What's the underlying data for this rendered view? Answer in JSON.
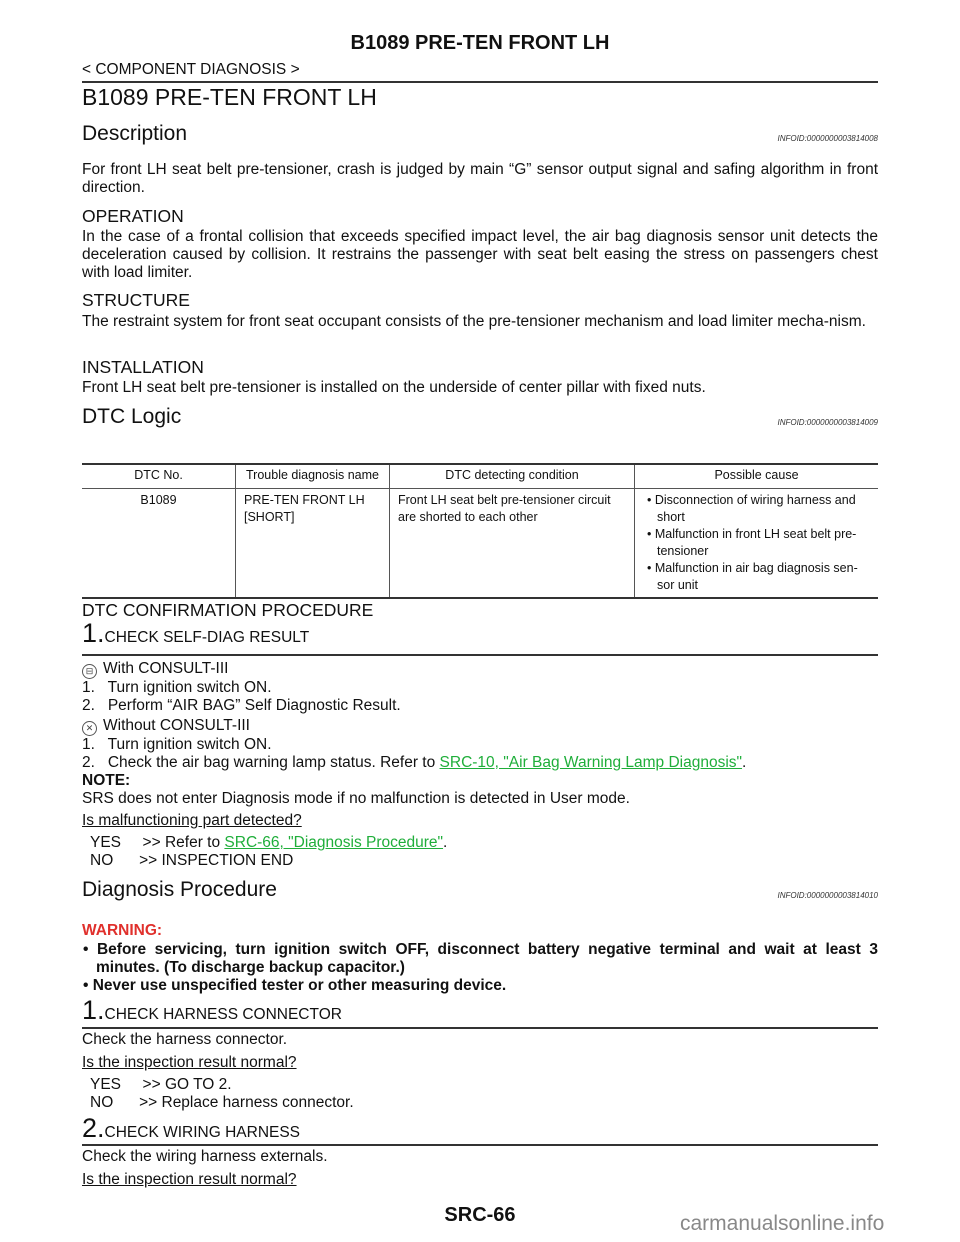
{
  "header": {
    "title": "B1089 PRE-TEN FRONT LH",
    "breadcrumb": "< COMPONENT DIAGNOSIS >"
  },
  "page_title": "B1089 PRE-TEN FRONT LH",
  "description": {
    "heading": "Description",
    "infoid": "INFOID:0000000003814008",
    "text": "For front LH seat belt pre-tensioner, crash is judged by main “G” sensor output signal and safing algorithm in front direction.",
    "operation_heading": "OPERATION",
    "operation_text": "In the case of a frontal collision that exceeds specified impact level, the air bag diagnosis sensor unit detects the deceleration caused by collision. It restrains the passenger with seat belt easing the stress on passengers chest with load limiter.",
    "structure_heading": "STRUCTURE",
    "structure_text": "The restraint system for front seat occupant consists of the pre-tensioner mechanism and load limiter mecha-nism.",
    "installation_heading": "INSTALLATION",
    "installation_text": "Front LH seat belt pre-tensioner is installed on the underside of center pillar with fixed nuts."
  },
  "dtc_logic": {
    "heading": "DTC Logic",
    "infoid": "INFOID:0000000003814009",
    "table": {
      "headers": [
        "DTC No.",
        "Trouble diagnosis name",
        "DTC detecting condition",
        "Possible cause"
      ],
      "row": {
        "dtc": "B1089",
        "name_line1": "PRE-TEN FRONT LH",
        "name_line2": "[SHORT]",
        "condition": "Front LH seat belt pre-tensioner circuit are shorted to each other",
        "causes": [
          "Disconnection of wiring harness and short",
          "Malfunction in front LH seat belt pre-tensioner",
          "Malfunction in air bag diagnosis sen-sor unit"
        ]
      }
    }
  },
  "confirmation": {
    "heading": "DTC CONFIRMATION PROCEDURE",
    "step_num": "1.",
    "step_title": "CHECK SELF-DIAG RESULT",
    "with_label": "With CONSULT-III",
    "with_steps": [
      "1.   Turn ignition switch ON.",
      "2.   Perform “AIR BAG” Self Diagnostic Result."
    ],
    "without_label": "Without CONSULT-III",
    "without_step1": "1.   Turn ignition switch ON.",
    "without_step2_prefix": "2.   Check the air bag warning lamp status. Refer to ",
    "without_step2_link": "SRC-10, \"Air Bag Warning Lamp Diagnosis\"",
    "without_step2_suffix": ".",
    "note_label": "NOTE:",
    "note_text": "SRS does not enter Diagnosis mode if no malfunction is detected in User mode.",
    "question": "Is malfunctioning part detected?",
    "yes_prefix": "YES     >> Refer to ",
    "yes_link": "SRC-66, \"Diagnosis Procedure\"",
    "yes_suffix": ".",
    "no": "NO      >> INSPECTION END"
  },
  "diagnosis": {
    "heading": "Diagnosis Procedure",
    "infoid": "INFOID:0000000003814010",
    "warning_label": "WARNING:",
    "warnings": [
      "Before servicing, turn ignition switch OFF, disconnect battery negative terminal and wait at least 3 minutes. (To discharge backup capacitor.)",
      "Never use unspecified tester or other measuring device."
    ],
    "step1": {
      "num": "1.",
      "title": "CHECK HARNESS CONNECTOR",
      "text": "Check the harness connector.",
      "question": "Is the inspection result normal?",
      "yes": "YES     >> GO TO 2.",
      "no": "NO      >> Replace harness connector."
    },
    "step2": {
      "num": "2.",
      "title": "CHECK WIRING HARNESS",
      "text": "Check the wiring harness externals.",
      "question": "Is the inspection result normal?"
    }
  },
  "footer": {
    "page": "SRC-66",
    "watermark": "carmanualsonline.info"
  },
  "colors": {
    "link": "#1fae3a",
    "warning": "#e0302c"
  },
  "icons": {
    "with_consult": "consult-tool-icon",
    "without_consult": "no-tool-icon"
  }
}
